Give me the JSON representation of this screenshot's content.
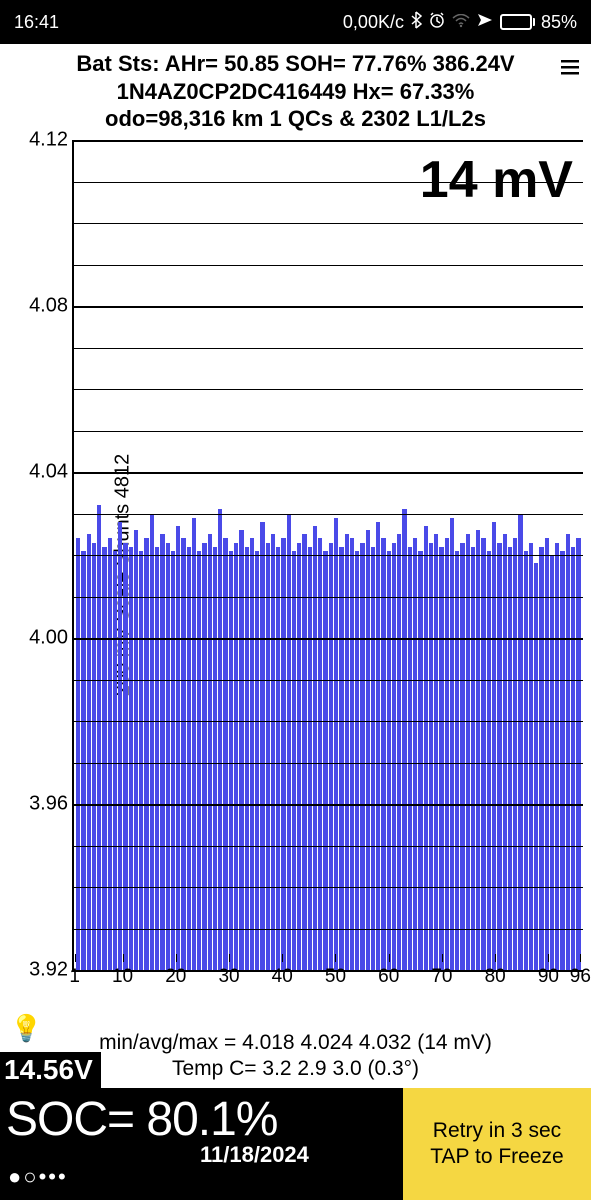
{
  "status_bar": {
    "time": "16:41",
    "data_rate": "0,00K/c",
    "battery_pct": "85%",
    "battery_fill_pct": 85,
    "battery_fill_color": "#ff9900"
  },
  "header": {
    "line1": "Bat Sts: AHr= 50.85 SOH= 77.76% 386.24V",
    "line2": "1N4AZ0CP2DC416449   Hx= 67.33%",
    "line3": "odo=98,316 km 1 QCs & 2302 L1/L2s"
  },
  "mv_overlay": "14 mV",
  "chart": {
    "type": "bar",
    "y_axis_title": "200 mV Scale   Shunts 4812",
    "ylim": [
      3.92,
      4.12
    ],
    "y_major_ticks": [
      3.92,
      3.96,
      4.0,
      4.04,
      4.08,
      4.12
    ],
    "y_tick_labels": [
      "3.92",
      "3.96",
      "4.00",
      "4.04",
      "4.08",
      "4.12"
    ],
    "minor_per_major": 3,
    "x_count": 96,
    "x_tick_positions": [
      1,
      10,
      20,
      30,
      40,
      50,
      60,
      70,
      80,
      90,
      96
    ],
    "x_tick_labels": [
      "1",
      "10",
      "20",
      "30",
      "40",
      "50",
      "60",
      "70",
      "80",
      "90",
      "96"
    ],
    "bar_color": "#4a4ae8",
    "grid_color": "#000000",
    "background_color": "#ffffff",
    "values": [
      4.024,
      4.021,
      4.025,
      4.023,
      4.032,
      4.022,
      4.024,
      4.021,
      4.028,
      4.023,
      4.022,
      4.026,
      4.021,
      4.024,
      4.03,
      4.022,
      4.025,
      4.023,
      4.021,
      4.027,
      4.024,
      4.022,
      4.029,
      4.021,
      4.023,
      4.025,
      4.022,
      4.031,
      4.024,
      4.021,
      4.023,
      4.026,
      4.022,
      4.024,
      4.021,
      4.028,
      4.023,
      4.025,
      4.022,
      4.024,
      4.03,
      4.021,
      4.023,
      4.025,
      4.022,
      4.027,
      4.024,
      4.021,
      4.023,
      4.029,
      4.022,
      4.025,
      4.024,
      4.021,
      4.023,
      4.026,
      4.022,
      4.028,
      4.024,
      4.021,
      4.023,
      4.025,
      4.031,
      4.022,
      4.024,
      4.021,
      4.027,
      4.023,
      4.025,
      4.022,
      4.024,
      4.029,
      4.021,
      4.023,
      4.025,
      4.022,
      4.026,
      4.024,
      4.021,
      4.028,
      4.023,
      4.025,
      4.022,
      4.024,
      4.03,
      4.021,
      4.023,
      4.018,
      4.022,
      4.024,
      4.02,
      4.023,
      4.021,
      4.025,
      4.022,
      4.024
    ]
  },
  "footer": {
    "stats_line": "min/avg/max = 4.018 4.024 4.032  (14 mV)",
    "temp_line": "Temp C= 3.2  2.9  3.0  (0.3°)",
    "aux_voltage": "14.56V"
  },
  "bottom": {
    "soc": "SOC= 80.1%",
    "date": "11/18/2024",
    "retry_line1": "Retry in 3 sec",
    "retry_line2": "TAP to Freeze",
    "retry_bg": "#f5d742"
  }
}
